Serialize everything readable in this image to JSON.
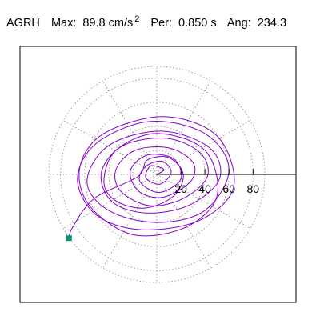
{
  "header": {
    "station": "AGRH",
    "max_label": "Max:",
    "max_value": "89.8 cm/s",
    "max_exp": "2",
    "per_label": "Per:",
    "per_value": "0.850 s",
    "ang_label": "Ang:",
    "ang_value": "234.3"
  },
  "chart_data": {
    "type": "scatter",
    "plot_kind": "polar-orbit (particle motion)",
    "title": "AGRH  Max: 89.8 cm/s2  Per: 0.850 s  Ang: 234.3",
    "radial_ticks": [
      20,
      40,
      60,
      80
    ],
    "radial_tick_labels": [
      "20",
      "40",
      "60",
      "80"
    ],
    "radial_range": [
      0,
      89.8
    ],
    "grid": "dotted concentric circles",
    "max_amplitude": 89.8,
    "max_angle_deg": 234.3,
    "period_s": 0.85,
    "end_marker": {
      "x": -73,
      "y": -53,
      "color": "#009977"
    },
    "trace_color": "#8800cc",
    "trace_points_xy": [
      [
        0,
        0
      ],
      [
        6,
        4
      ],
      [
        -5,
        7
      ],
      [
        -9,
        -3
      ],
      [
        3,
        -8
      ],
      [
        12,
        2
      ],
      [
        4,
        11
      ],
      [
        -10,
        6
      ],
      [
        -14,
        -6
      ],
      [
        2,
        -15
      ],
      [
        20,
        -4
      ],
      [
        14,
        13
      ],
      [
        -8,
        16
      ],
      [
        -22,
        3
      ],
      [
        -15,
        -14
      ],
      [
        5,
        -19
      ],
      [
        28,
        -6
      ],
      [
        30,
        10
      ],
      [
        10,
        22
      ],
      [
        -18,
        20
      ],
      [
        -34,
        4
      ],
      [
        -30,
        -14
      ],
      [
        -6,
        -26
      ],
      [
        22,
        -20
      ],
      [
        42,
        -2
      ],
      [
        36,
        18
      ],
      [
        8,
        30
      ],
      [
        -28,
        24
      ],
      [
        -46,
        2
      ],
      [
        -38,
        -22
      ],
      [
        -10,
        -32
      ],
      [
        26,
        -26
      ],
      [
        52,
        -4
      ],
      [
        44,
        22
      ],
      [
        4,
        36
      ],
      [
        -40,
        24
      ],
      [
        -58,
        -6
      ],
      [
        -40,
        -30
      ],
      [
        0,
        -40
      ],
      [
        40,
        -30
      ],
      [
        60,
        4
      ],
      [
        40,
        34
      ],
      [
        -6,
        44
      ],
      [
        -50,
        26
      ],
      [
        -66,
        -4
      ],
      [
        -50,
        -34
      ],
      [
        -12,
        -46
      ],
      [
        36,
        -38
      ],
      [
        64,
        -10
      ],
      [
        50,
        32
      ],
      [
        6,
        48
      ],
      [
        -44,
        34
      ],
      [
        -64,
        6
      ],
      [
        -56,
        -26
      ],
      [
        -20,
        -50
      ],
      [
        24,
        -44
      ],
      [
        50,
        -18
      ],
      [
        40,
        20
      ],
      [
        0,
        34
      ],
      [
        -34,
        20
      ],
      [
        -44,
        -6
      ],
      [
        -34,
        -22
      ],
      [
        -10,
        -28
      ],
      [
        14,
        -18
      ],
      [
        22,
        0
      ],
      [
        10,
        14
      ],
      [
        -8,
        12
      ],
      [
        -16,
        -2
      ],
      [
        -52,
        -20
      ],
      [
        -70,
        -44
      ],
      [
        -73,
        -53
      ]
    ]
  }
}
